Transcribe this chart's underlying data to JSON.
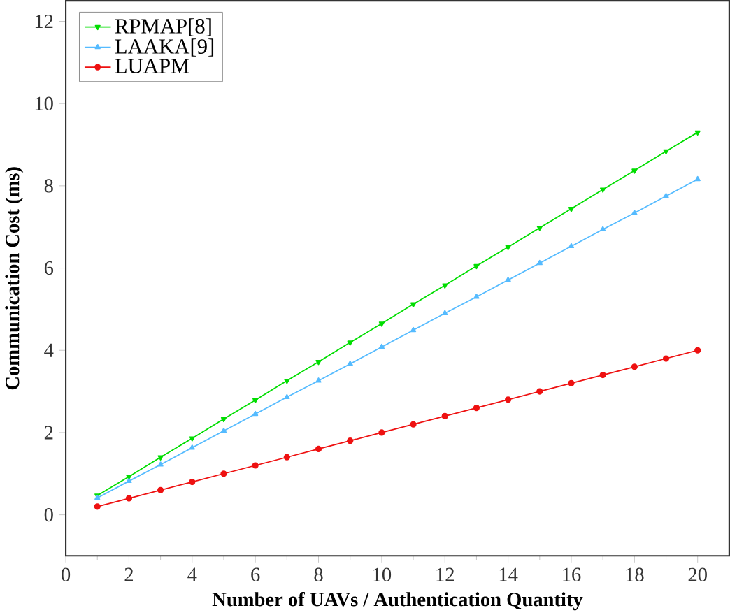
{
  "chart_data": {
    "type": "line",
    "xlabel": "Number of UAVs / Authentication Quantity",
    "ylabel": "Communication Cost (ms)",
    "x": [
      1,
      2,
      3,
      4,
      5,
      6,
      7,
      8,
      9,
      10,
      11,
      12,
      13,
      14,
      15,
      16,
      17,
      18,
      19,
      20
    ],
    "xlim": [
      0,
      21
    ],
    "xticks": [
      0,
      2,
      4,
      6,
      8,
      10,
      12,
      14,
      16,
      18,
      20
    ],
    "ylim": [
      -1,
      12.5
    ],
    "yticks": [
      0,
      2,
      4,
      6,
      8,
      10,
      12
    ],
    "legend": "top left",
    "grid": false,
    "series": [
      {
        "name": "RPMAP[8]",
        "color": "#00dd00",
        "marker": "triangle-down",
        "values": [
          0.47,
          0.93,
          1.4,
          1.86,
          2.33,
          2.79,
          3.26,
          3.72,
          4.19,
          4.65,
          5.12,
          5.58,
          6.05,
          6.51,
          6.98,
          7.44,
          7.91,
          8.37,
          8.84,
          9.3
        ]
      },
      {
        "name": "LAAKA[9]",
        "color": "#55bbff",
        "marker": "triangle",
        "values": [
          0.41,
          0.82,
          1.22,
          1.63,
          2.04,
          2.45,
          2.86,
          3.26,
          3.67,
          4.08,
          4.49,
          4.9,
          5.3,
          5.71,
          6.12,
          6.53,
          6.94,
          7.34,
          7.75,
          8.16
        ]
      },
      {
        "name": "LUAPM",
        "color": "#ee1111",
        "marker": "circle",
        "values": [
          0.2,
          0.4,
          0.6,
          0.8,
          1.0,
          1.2,
          1.4,
          1.6,
          1.8,
          2.0,
          2.2,
          2.4,
          2.6,
          2.8,
          3.0,
          3.2,
          3.4,
          3.6,
          3.8,
          4.0
        ]
      }
    ]
  }
}
